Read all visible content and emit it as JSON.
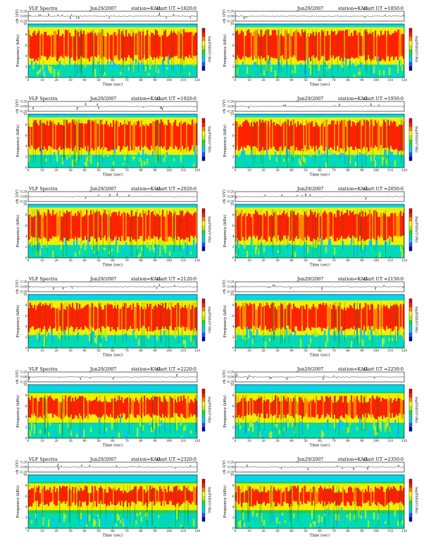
{
  "colorbar": {
    "label": "log(PSD)(V²/Hz)",
    "colors": [
      "#0000aa",
      "#2255ff",
      "#00ccff",
      "#00e0a0",
      "#22dd22",
      "#bbee00",
      "#ffff00",
      "#ff8800",
      "#ff2200",
      "#dd0000"
    ]
  },
  "chart_data": [
    {
      "type": "heatmap",
      "header": {
        "title": "VLF Spectra",
        "date": "Jun29/2007",
        "station": "station=KAG",
        "start": "start UT =1820:0"
      },
      "ch_ylabel": "ch 1(V)",
      "ch_yticks": [
        "0.20",
        "0.00",
        "-0.20"
      ],
      "ch_ylim": [
        -0.2,
        0.2
      ],
      "ylabel": "Frequency (kHz)",
      "ylim": [
        0,
        10
      ],
      "yticks": [
        "0",
        "2",
        "4",
        "6",
        "8",
        "10"
      ],
      "xlabel": "Time (sec)",
      "xlim": [
        0,
        120
      ],
      "xticks": [
        "0",
        "10",
        "20",
        "30",
        "40",
        "50",
        "60",
        "70",
        "80",
        "90",
        "100",
        "110",
        "120"
      ],
      "colorbar_label": "log(PSD)(V²/Hz)",
      "band_khz": [
        3,
        9
      ],
      "cyan_top_khz": 10
    },
    {
      "type": "heatmap",
      "header": {
        "title": "",
        "date": "Jun29/2007",
        "station": "station=KAG",
        "start": "start UT =1850:0"
      },
      "ch_ylabel": "ch 1(V)",
      "ch_yticks": [
        "0.20",
        "0.00",
        "-0.20"
      ],
      "ch_ylim": [
        -0.2,
        0.2
      ],
      "ylabel": "Frequency (kHz)",
      "ylim": [
        0,
        10
      ],
      "yticks": [
        "0",
        "2",
        "4",
        "6",
        "8",
        "10"
      ],
      "xlabel": "Time (sec)",
      "xlim": [
        0,
        120
      ],
      "xticks": [
        "0",
        "10",
        "20",
        "30",
        "40",
        "50",
        "60",
        "70",
        "80",
        "90",
        "100",
        "110",
        "120"
      ],
      "colorbar_label": "log(PSD)(V²/Hz)",
      "band_khz": [
        3,
        9
      ],
      "cyan_top_khz": 10
    },
    {
      "type": "heatmap",
      "header": {
        "title": "VLF Spectra",
        "date": "Jun29/2007",
        "station": "station=KAG",
        "start": "start UT =1920:0"
      },
      "ch_ylabel": "ch 1(V)",
      "ch_yticks": [
        "0.20",
        "0.00",
        "-0.20"
      ],
      "ch_ylim": [
        -0.2,
        0.2
      ],
      "ylabel": "Frequency (kHz)",
      "ylim": [
        0,
        10
      ],
      "yticks": [
        "0",
        "2",
        "4",
        "6",
        "8",
        "10"
      ],
      "xlabel": "Time (sec)",
      "xlim": [
        0,
        120
      ],
      "xticks": [
        "0",
        "10",
        "20",
        "30",
        "40",
        "50",
        "60",
        "70",
        "80",
        "90",
        "100",
        "110",
        "120"
      ],
      "colorbar_label": "log(PSD)(V²/Hz)",
      "band_khz": [
        3,
        9
      ],
      "cyan_top_khz": 10
    },
    {
      "type": "heatmap",
      "header": {
        "title": "",
        "date": "Jun29/2007",
        "station": "station=KAG",
        "start": "start UT =1950:0"
      },
      "ch_ylabel": "ch 1(V)",
      "ch_yticks": [
        "0.20",
        "0.00",
        "-0.20"
      ],
      "ch_ylim": [
        -0.2,
        0.2
      ],
      "ylabel": "Frequency (kHz)",
      "ylim": [
        0,
        10
      ],
      "yticks": [
        "0",
        "2",
        "4",
        "6",
        "8",
        "10"
      ],
      "xlabel": "Time (sec)",
      "xlim": [
        0,
        120
      ],
      "xticks": [
        "0",
        "10",
        "20",
        "30",
        "40",
        "50",
        "60",
        "70",
        "80",
        "90",
        "100",
        "110",
        "120"
      ],
      "colorbar_label": "log(PSD)(V²/Hz)",
      "band_khz": [
        3,
        9
      ],
      "cyan_top_khz": 10
    },
    {
      "type": "heatmap",
      "header": {
        "title": "VLF Spectra",
        "date": "Jun29/2007",
        "station": "station=KAG",
        "start": "start UT =2020:0"
      },
      "ch_ylabel": "ch 1(V)",
      "ch_yticks": [
        "0.20",
        "0.00",
        "-0.20"
      ],
      "ch_ylim": [
        -0.2,
        0.2
      ],
      "ylabel": "Frequency (kHz)",
      "ylim": [
        0,
        10
      ],
      "yticks": [
        "0",
        "2",
        "4",
        "6",
        "8",
        "10"
      ],
      "xlabel": "Time (sec)",
      "xlim": [
        0,
        120
      ],
      "xticks": [
        "0",
        "10",
        "20",
        "30",
        "40",
        "50",
        "60",
        "70",
        "80",
        "90",
        "100",
        "110",
        "120"
      ],
      "colorbar_label": "log(PSD)(V²/Hz)",
      "band_khz": [
        3,
        9
      ],
      "cyan_top_khz": 10
    },
    {
      "type": "heatmap",
      "header": {
        "title": "",
        "date": "Jun29/2007",
        "station": "station=KAG",
        "start": "start UT =2050:0"
      },
      "ch_ylabel": "ch 1(V)",
      "ch_yticks": [
        "0.20",
        "0.00",
        "-0.20"
      ],
      "ch_ylim": [
        -0.2,
        0.2
      ],
      "ylabel": "Frequency (kHz)",
      "ylim": [
        0,
        10
      ],
      "yticks": [
        "0",
        "2",
        "4",
        "6",
        "8",
        "10"
      ],
      "xlabel": "Time (sec)",
      "xlim": [
        0,
        120
      ],
      "xticks": [
        "0",
        "10",
        "20",
        "30",
        "40",
        "50",
        "60",
        "70",
        "80",
        "90",
        "100",
        "110",
        "120"
      ],
      "colorbar_label": "log(PSD)(V²/Hz)",
      "band_khz": [
        3,
        9
      ],
      "cyan_top_khz": 10
    },
    {
      "type": "heatmap",
      "header": {
        "title": "VLF Spectra",
        "date": "Jun29/2007",
        "station": "station=KAG",
        "start": "start UT =2120:0"
      },
      "ch_ylabel": "ch 1(V)",
      "ch_yticks": [
        "0.20",
        "0.00",
        "-0.20"
      ],
      "ch_ylim": [
        -0.2,
        0.2
      ],
      "ylabel": "Frequency (kHz)",
      "ylim": [
        0,
        10
      ],
      "yticks": [
        "0",
        "2",
        "4",
        "6",
        "8",
        "10"
      ],
      "xlabel": "Time (sec)",
      "xlim": [
        0,
        120
      ],
      "xticks": [
        "0",
        "10",
        "20",
        "30",
        "40",
        "50",
        "60",
        "70",
        "80",
        "90",
        "100",
        "110",
        "120"
      ],
      "colorbar_label": "log(PSD)(V²/Hz)",
      "band_khz": [
        3,
        8.5
      ],
      "cyan_top_khz": 9.5
    },
    {
      "type": "heatmap",
      "header": {
        "title": "",
        "date": "Jun29/2007",
        "station": "station=KAG",
        "start": "start UT =2150:0"
      },
      "ch_ylabel": "ch 1(V)",
      "ch_yticks": [
        "0.20",
        "0.00",
        "-0.20"
      ],
      "ch_ylim": [
        -0.2,
        0.2
      ],
      "ylabel": "Frequency (kHz)",
      "ylim": [
        0,
        10
      ],
      "yticks": [
        "0",
        "2",
        "4",
        "6",
        "8",
        "10"
      ],
      "xlabel": "Time (sec)",
      "xlim": [
        0,
        120
      ],
      "xticks": [
        "0",
        "10",
        "20",
        "30",
        "40",
        "50",
        "60",
        "70",
        "80",
        "90",
        "100",
        "110",
        "120"
      ],
      "colorbar_label": "log(PSD)(V²/Hz)",
      "band_khz": [
        3,
        8.5
      ],
      "cyan_top_khz": 9.5
    },
    {
      "type": "heatmap",
      "header": {
        "title": "VLF Spectra",
        "date": "Jun29/2007",
        "station": "station=KAG",
        "start": "start UT =2220:0"
      },
      "ch_ylabel": "ch 1(V)",
      "ch_yticks": [
        "0.20",
        "0.00",
        "-0.20"
      ],
      "ch_ylim": [
        -0.2,
        0.2
      ],
      "ylabel": "Frequency (kHz)",
      "ylim": [
        0,
        10
      ],
      "yticks": [
        "0",
        "2",
        "4",
        "6",
        "8",
        "10"
      ],
      "xlabel": "Time (sec)",
      "xlim": [
        0,
        120
      ],
      "xticks": [
        "0",
        "10",
        "20",
        "30",
        "40",
        "50",
        "60",
        "70",
        "80",
        "90",
        "100",
        "110",
        "120"
      ],
      "colorbar_label": "log(PSD)(V²/Hz)",
      "band_khz": [
        3.5,
        8
      ],
      "cyan_top_khz": 9.5
    },
    {
      "type": "heatmap",
      "header": {
        "title": "",
        "date": "Jun29/2007",
        "station": "station=KAG",
        "start": "start UT =2250:0"
      },
      "ch_ylabel": "ch 1(V)",
      "ch_yticks": [
        "0.20",
        "0.00",
        "-0.20"
      ],
      "ch_ylim": [
        -0.2,
        0.2
      ],
      "ylabel": "Frequency (kHz)",
      "ylim": [
        0,
        10
      ],
      "yticks": [
        "0",
        "2",
        "4",
        "6",
        "8",
        "10"
      ],
      "xlabel": "Time (sec)",
      "xlim": [
        0,
        120
      ],
      "xticks": [
        "0",
        "10",
        "20",
        "30",
        "40",
        "50",
        "60",
        "70",
        "80",
        "90",
        "100",
        "110",
        "120"
      ],
      "colorbar_label": "log(PSD)(V²/Hz)",
      "band_khz": [
        3.5,
        8
      ],
      "cyan_top_khz": 9.5
    },
    {
      "type": "heatmap",
      "header": {
        "title": "VLF Spectra",
        "date": "Jun29/2007",
        "station": "station=KAG",
        "start": "start UT =2320:0"
      },
      "ch_ylabel": "ch 1(V)",
      "ch_yticks": [
        "0.20",
        "0.00",
        "-0.20"
      ],
      "ch_ylim": [
        -0.2,
        0.2
      ],
      "ylabel": "Frequency (kHz)",
      "ylim": [
        0,
        10
      ],
      "yticks": [
        "0",
        "2",
        "4",
        "6",
        "8",
        "10"
      ],
      "xlabel": "Time (sec)",
      "xlim": [
        0,
        120
      ],
      "xticks": [
        "0",
        "10",
        "20",
        "30",
        "40",
        "50",
        "60",
        "70",
        "80",
        "90",
        "100",
        "110",
        "120"
      ],
      "colorbar_label": "log(PSD)(V²/Hz)",
      "band_khz": [
        4,
        8
      ],
      "cyan_top_khz": 9.5
    },
    {
      "type": "heatmap",
      "header": {
        "title": "",
        "date": "Jun29/2007",
        "station": "station=KAG",
        "start": "start UT =2350:0"
      },
      "ch_ylabel": "ch 1(V)",
      "ch_yticks": [
        "0.20",
        "0.00",
        "-0.20"
      ],
      "ch_ylim": [
        -0.2,
        0.2
      ],
      "ylabel": "Frequency (kHz)",
      "ylim": [
        0,
        10
      ],
      "yticks": [
        "0",
        "2",
        "4",
        "6",
        "8",
        "10"
      ],
      "xlabel": "Time (sec)",
      "xlim": [
        0,
        120
      ],
      "xticks": [
        "0",
        "10",
        "20",
        "30",
        "40",
        "50",
        "60",
        "70",
        "80",
        "90",
        "100",
        "110",
        "120"
      ],
      "colorbar_label": "log(PSD)(V²/Hz)",
      "band_khz": [
        4,
        8
      ],
      "cyan_top_khz": 9.5
    }
  ]
}
